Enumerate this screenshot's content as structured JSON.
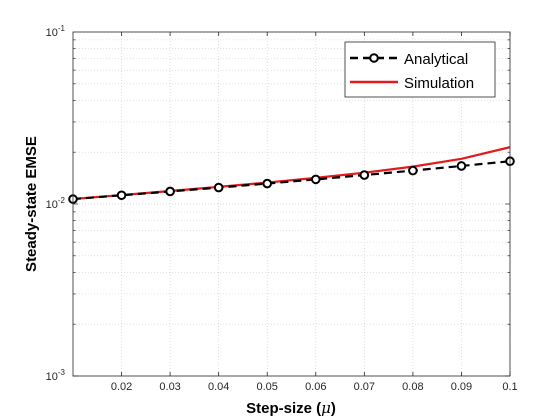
{
  "chart_data": {
    "type": "line",
    "xlabel": "Step-size (",
    "xlabel_symbol": "μ",
    "xlabel_close": ")",
    "ylabel": "Steady-state EMSE",
    "yscale": "log",
    "xlim": [
      0.01,
      0.1
    ],
    "ylim": [
      0.001,
      0.1
    ],
    "grid": true,
    "minor_grid": true,
    "legend_position": "top-right",
    "x_tick_labels": [
      "0.02",
      "0.03",
      "0.04",
      "0.05",
      "0.06",
      "0.07",
      "0.08",
      "0.09",
      "0.1"
    ],
    "y_tick_labels": [
      {
        "base": "10",
        "exp": "-1",
        "value": 0.1
      },
      {
        "base": "10",
        "exp": "-2",
        "value": 0.01
      },
      {
        "base": "10",
        "exp": "-3",
        "value": 0.001
      }
    ],
    "series": [
      {
        "name": "Analytical",
        "color": "#000000",
        "style": "dashed",
        "marker": "circle",
        "x": [
          0.01,
          0.02,
          0.03,
          0.04,
          0.05,
          0.06,
          0.07,
          0.08,
          0.09,
          0.1
        ],
        "y": [
          0.01068,
          0.01124,
          0.01183,
          0.01246,
          0.01315,
          0.0139,
          0.01473,
          0.01564,
          0.01664,
          0.01773
        ]
      },
      {
        "name": "Simulation",
        "color": "#e41a1c",
        "style": "solid",
        "marker": "none",
        "x": [
          0.01,
          0.02,
          0.03,
          0.04,
          0.05,
          0.06,
          0.07,
          0.08,
          0.09,
          0.1
        ],
        "y": [
          0.01069,
          0.01127,
          0.0119,
          0.01258,
          0.01332,
          0.01419,
          0.01521,
          0.01649,
          0.01832,
          0.02139
        ]
      }
    ]
  }
}
